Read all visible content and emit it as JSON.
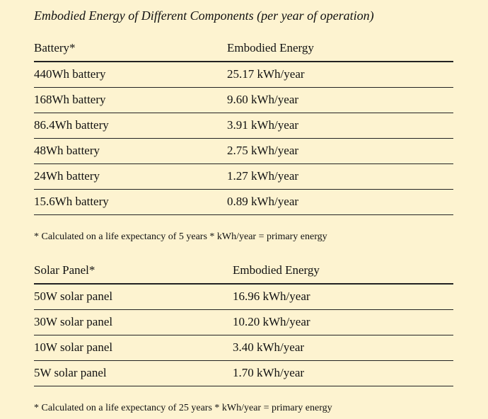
{
  "title": "Embodied Energy of Different Components (per year of operation)",
  "tables": [
    {
      "header": [
        "Battery*",
        "Embodied Energy"
      ],
      "rows": [
        [
          "440Wh battery",
          "25.17 kWh/year"
        ],
        [
          "168Wh battery",
          "9.60 kWh/year"
        ],
        [
          "86.4Wh battery",
          "3.91 kWh/year"
        ],
        [
          "48Wh battery",
          "2.75 kWh/year"
        ],
        [
          "24Wh battery",
          "1.27 kWh/year"
        ],
        [
          "15.6Wh battery",
          "0.89 kWh/year"
        ]
      ],
      "note": "* Calculated on a life expectancy of 5 years * kWh/year = primary energy"
    },
    {
      "header": [
        "Solar Panel*",
        "Embodied Energy"
      ],
      "rows": [
        [
          "50W solar panel",
          "16.96 kWh/year"
        ],
        [
          "30W solar panel",
          "10.20 kWh/year"
        ],
        [
          "10W solar panel",
          "3.40 kWh/year"
        ],
        [
          "5W solar panel",
          "1.70 kWh/year"
        ]
      ],
      "note": "* Calculated on a life expectancy of 25 years * kWh/year = primary energy"
    }
  ]
}
